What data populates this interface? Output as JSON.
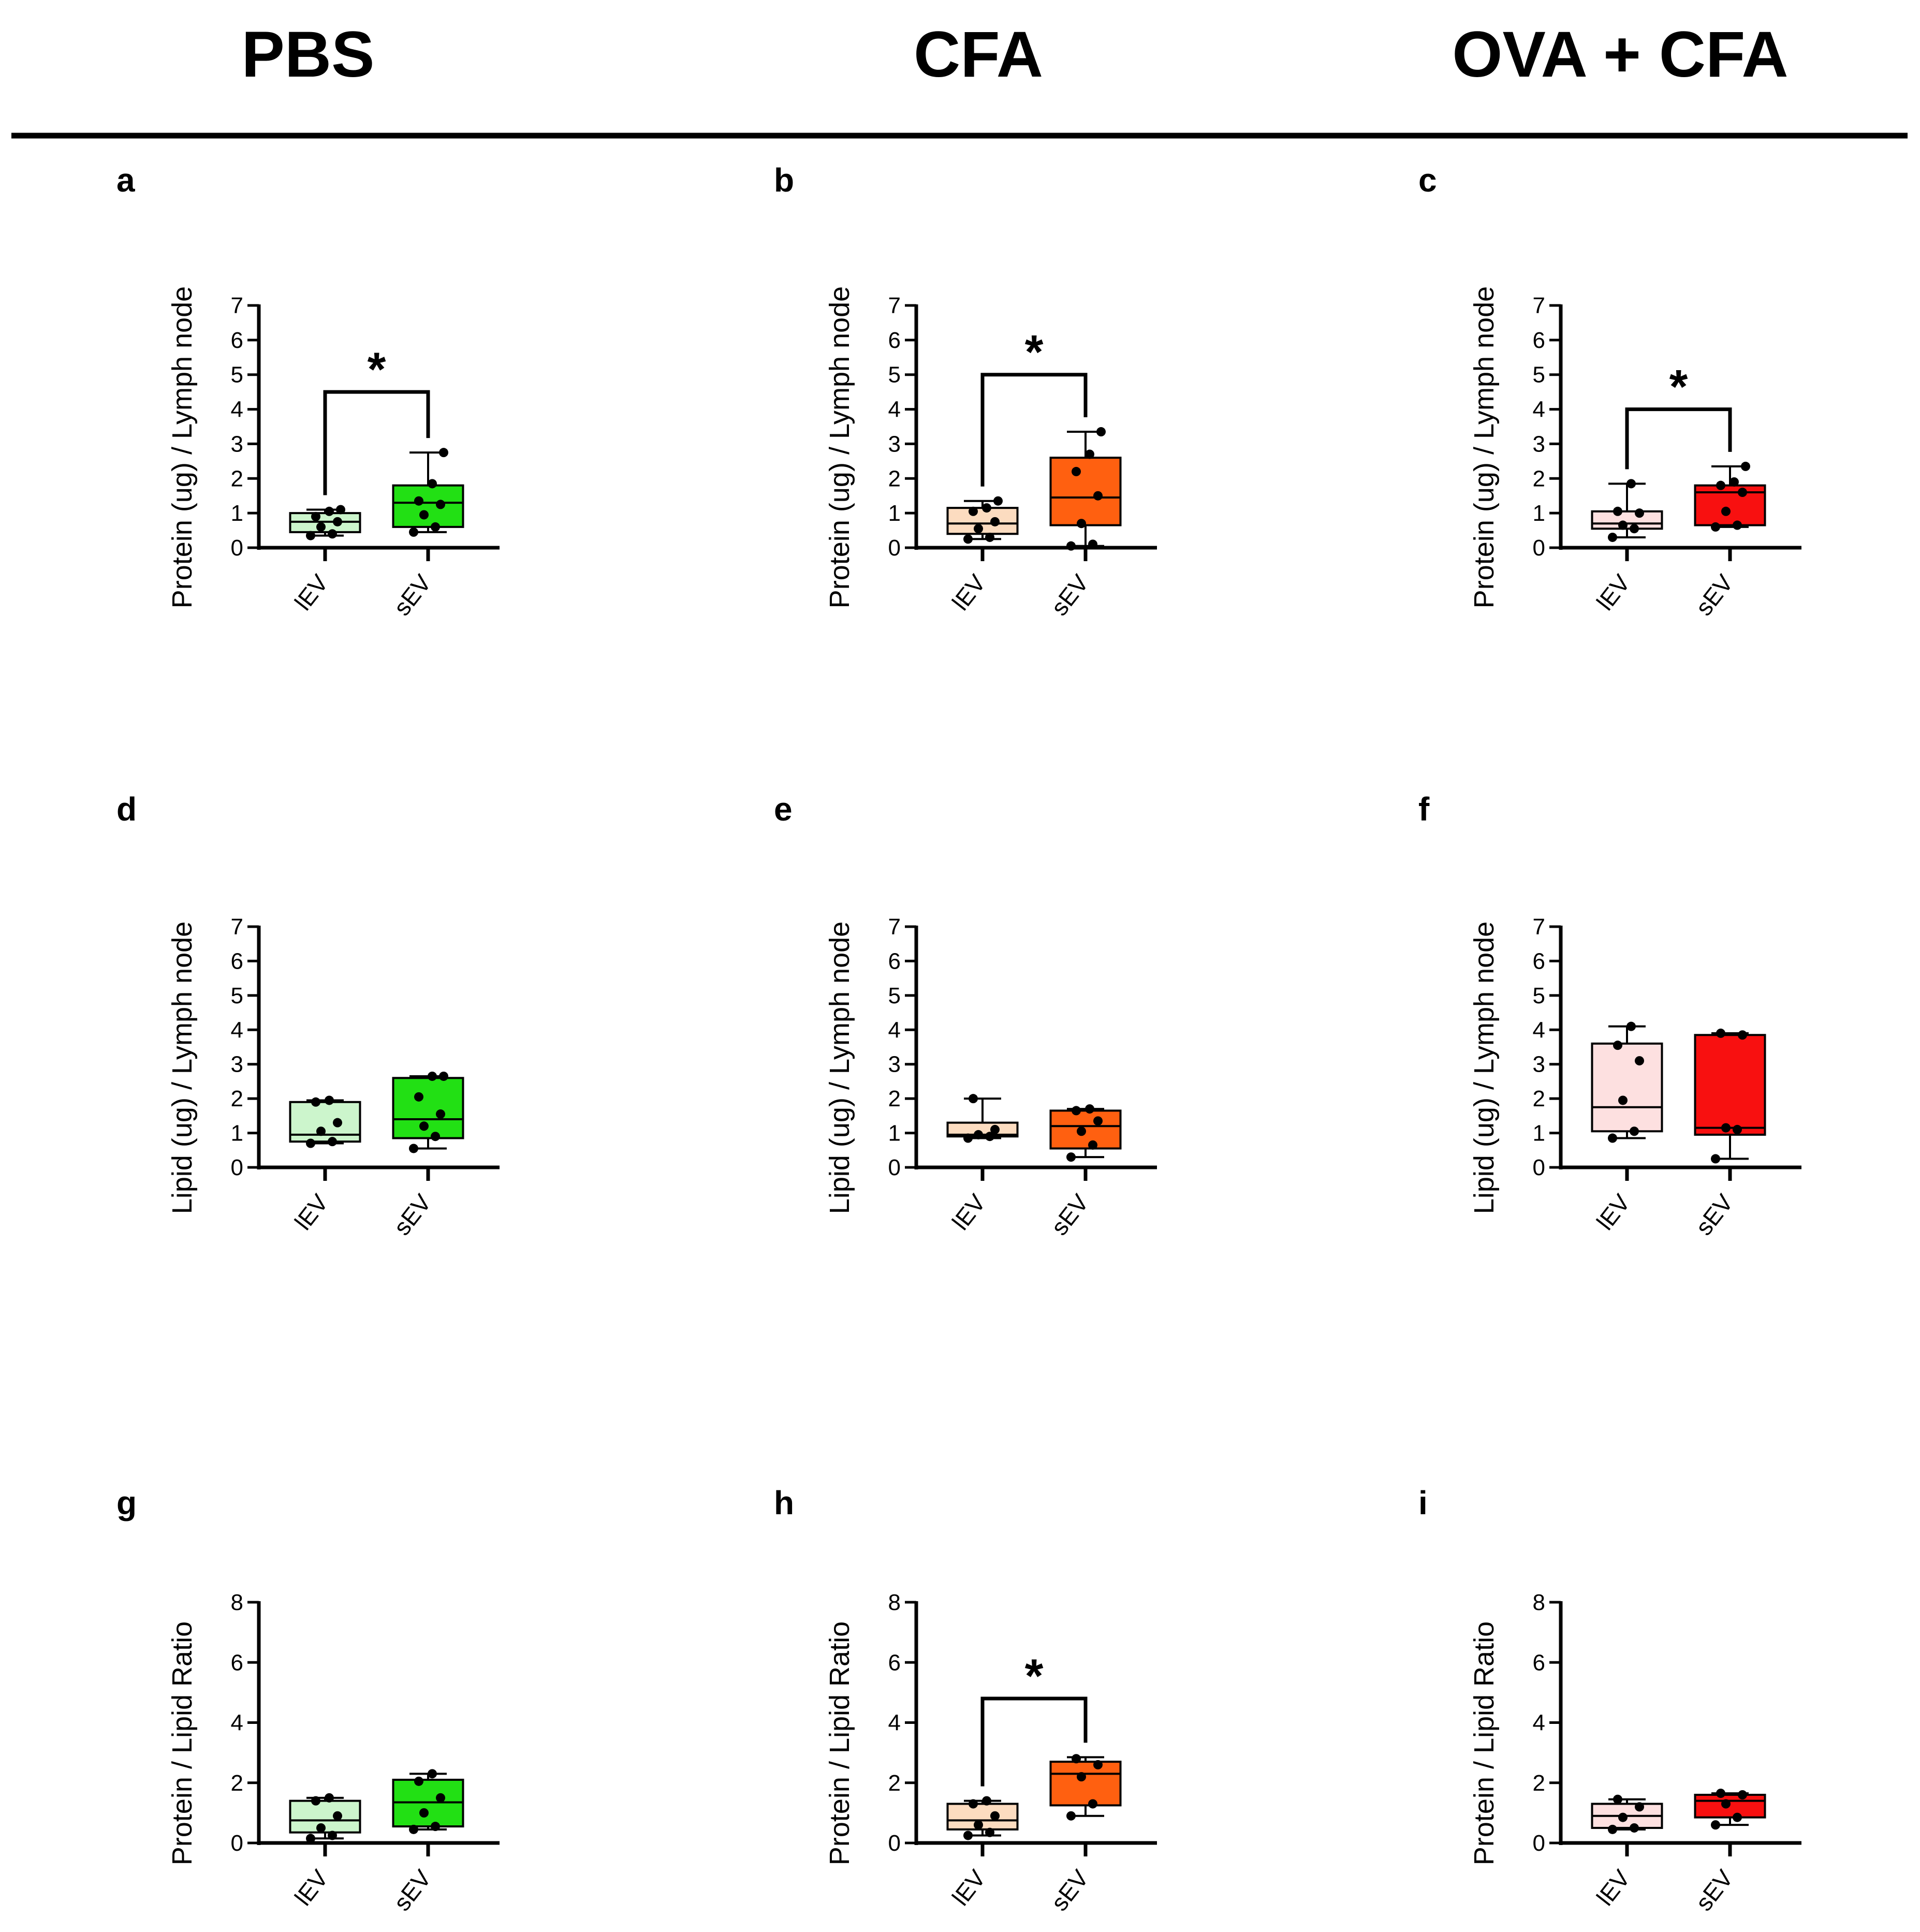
{
  "figure": {
    "group_titles": [
      "PBS",
      "CFA",
      "OVA + CFA"
    ],
    "colors": {
      "pbs_lEV": "#ccf5cc",
      "pbs_sEV": "#22e014",
      "cfa_lEV": "#fcdcc0",
      "cfa_sEV": "#ff6010",
      "ova_lEV": "#fde0e0",
      "ova_sEV": "#f81010"
    }
  },
  "chart_data": [
    {
      "type": "box",
      "panel": "a",
      "group": "PBS",
      "ylabel": "Protein (ug) / Lymph node",
      "ylim": [
        0,
        7
      ],
      "yticks": [
        "0",
        "1",
        "2",
        "3",
        "4",
        "5",
        "6",
        "7"
      ],
      "categories": [
        "lEV",
        "sEV"
      ],
      "boxes": [
        {
          "name": "lEV",
          "min": 0.35,
          "q1": 0.45,
          "median": 0.75,
          "q3": 1.0,
          "max": 1.1,
          "points": [
            0.35,
            0.4,
            0.6,
            0.75,
            0.9,
            1.05,
            1.1
          ],
          "color_key": "pbs_lEV"
        },
        {
          "name": "sEV",
          "min": 0.45,
          "q1": 0.6,
          "median": 1.3,
          "q3": 1.8,
          "max": 2.75,
          "points": [
            0.45,
            0.6,
            0.95,
            1.25,
            1.35,
            1.85,
            2.75
          ],
          "color_key": "pbs_sEV"
        }
      ],
      "significance": {
        "label": "*",
        "y": 4.5
      }
    },
    {
      "type": "box",
      "panel": "b",
      "group": "CFA",
      "ylabel": "Protein (ug) / Lymph node",
      "ylim": [
        0,
        7
      ],
      "yticks": [
        "0",
        "1",
        "2",
        "3",
        "4",
        "5",
        "6",
        "7"
      ],
      "categories": [
        "lEV",
        "sEV"
      ],
      "boxes": [
        {
          "name": "lEV",
          "min": 0.25,
          "q1": 0.4,
          "median": 0.7,
          "q3": 1.15,
          "max": 1.35,
          "points": [
            0.25,
            0.3,
            0.55,
            0.75,
            1.05,
            1.15,
            1.35
          ],
          "color_key": "cfa_lEV"
        },
        {
          "name": "sEV",
          "min": 0.05,
          "q1": 0.65,
          "median": 1.45,
          "q3": 2.6,
          "max": 3.35,
          "points": [
            0.05,
            0.1,
            0.7,
            1.5,
            2.2,
            2.7,
            3.35
          ],
          "color_key": "cfa_sEV"
        }
      ],
      "significance": {
        "label": "*",
        "y": 5.0
      }
    },
    {
      "type": "box",
      "panel": "c",
      "group": "OVA + CFA",
      "ylabel": "Protein (ug) / Lymph node",
      "ylim": [
        0,
        7
      ],
      "yticks": [
        "0",
        "1",
        "2",
        "3",
        "4",
        "5",
        "6",
        "7"
      ],
      "categories": [
        "lEV",
        "sEV"
      ],
      "boxes": [
        {
          "name": "lEV",
          "min": 0.3,
          "q1": 0.55,
          "median": 0.7,
          "q3": 1.05,
          "max": 1.85,
          "points": [
            0.3,
            0.55,
            0.65,
            1.0,
            1.05,
            1.85
          ],
          "color_key": "ova_lEV"
        },
        {
          "name": "sEV",
          "min": 0.6,
          "q1": 0.65,
          "median": 1.6,
          "q3": 1.8,
          "max": 2.35,
          "points": [
            0.6,
            0.65,
            1.05,
            1.6,
            1.8,
            1.9,
            2.35
          ],
          "color_key": "ova_sEV"
        }
      ],
      "significance": {
        "label": "*",
        "y": 4.0
      }
    },
    {
      "type": "box",
      "panel": "d",
      "group": "PBS",
      "ylabel": "Lipid (ug) / Lymph node",
      "ylim": [
        0,
        7
      ],
      "yticks": [
        "0",
        "1",
        "2",
        "3",
        "4",
        "5",
        "6",
        "7"
      ],
      "categories": [
        "lEV",
        "sEV"
      ],
      "boxes": [
        {
          "name": "lEV",
          "min": 0.7,
          "q1": 0.75,
          "median": 0.95,
          "q3": 1.9,
          "max": 1.95,
          "points": [
            0.7,
            0.75,
            1.05,
            1.3,
            1.9,
            1.95
          ],
          "color_key": "pbs_lEV"
        },
        {
          "name": "sEV",
          "min": 0.55,
          "q1": 0.85,
          "median": 1.4,
          "q3": 2.6,
          "max": 2.65,
          "points": [
            0.55,
            0.9,
            1.2,
            1.55,
            2.05,
            2.65,
            2.65
          ],
          "color_key": "pbs_sEV"
        }
      ],
      "significance": null
    },
    {
      "type": "box",
      "panel": "e",
      "group": "CFA",
      "ylabel": "Lipid (ug) / Lymph node",
      "ylim": [
        0,
        7
      ],
      "yticks": [
        "0",
        "1",
        "2",
        "3",
        "4",
        "5",
        "6",
        "7"
      ],
      "categories": [
        "lEV",
        "sEV"
      ],
      "boxes": [
        {
          "name": "lEV",
          "min": 0.85,
          "q1": 0.9,
          "median": 0.95,
          "q3": 1.3,
          "max": 2.0,
          "points": [
            0.85,
            0.9,
            0.95,
            1.1,
            2.0
          ],
          "color_key": "cfa_lEV"
        },
        {
          "name": "sEV",
          "min": 0.3,
          "q1": 0.55,
          "median": 1.2,
          "q3": 1.65,
          "max": 1.7,
          "points": [
            0.3,
            0.65,
            1.05,
            1.35,
            1.65,
            1.7
          ],
          "color_key": "cfa_sEV"
        }
      ],
      "significance": null
    },
    {
      "type": "box",
      "panel": "f",
      "group": "OVA + CFA",
      "ylabel": "Lipid (ug) / Lymph node",
      "ylim": [
        0,
        7
      ],
      "yticks": [
        "0",
        "1",
        "2",
        "3",
        "4",
        "5",
        "6",
        "7"
      ],
      "categories": [
        "lEV",
        "sEV"
      ],
      "boxes": [
        {
          "name": "lEV",
          "min": 0.85,
          "q1": 1.05,
          "median": 1.75,
          "q3": 3.6,
          "max": 4.1,
          "points": [
            0.85,
            1.05,
            1.95,
            3.1,
            3.55,
            4.1
          ],
          "color_key": "ova_lEV"
        },
        {
          "name": "sEV",
          "min": 0.25,
          "q1": 0.95,
          "median": 1.15,
          "q3": 3.85,
          "max": 3.9,
          "points": [
            0.25,
            1.1,
            1.15,
            3.85,
            3.9
          ],
          "color_key": "ova_sEV"
        }
      ],
      "significance": null
    },
    {
      "type": "box",
      "panel": "g",
      "group": "PBS",
      "ylabel": "Protein / Lipid Ratio",
      "ylim": [
        0,
        8
      ],
      "yticks": [
        "0",
        "2",
        "4",
        "6",
        "8"
      ],
      "categories": [
        "lEV",
        "sEV"
      ],
      "boxes": [
        {
          "name": "lEV",
          "min": 0.15,
          "q1": 0.35,
          "median": 0.75,
          "q3": 1.4,
          "max": 1.5,
          "points": [
            0.15,
            0.25,
            0.5,
            0.9,
            1.4,
            1.5
          ],
          "color_key": "pbs_lEV"
        },
        {
          "name": "sEV",
          "min": 0.45,
          "q1": 0.55,
          "median": 1.35,
          "q3": 2.1,
          "max": 2.3,
          "points": [
            0.45,
            0.55,
            1.0,
            1.5,
            2.05,
            2.3
          ],
          "color_key": "pbs_sEV"
        }
      ],
      "significance": null
    },
    {
      "type": "box",
      "panel": "h",
      "group": "CFA",
      "ylabel": "Protein / Lipid Ratio",
      "ylim": [
        0,
        8
      ],
      "yticks": [
        "0",
        "2",
        "4",
        "6",
        "8"
      ],
      "categories": [
        "lEV",
        "sEV"
      ],
      "boxes": [
        {
          "name": "lEV",
          "min": 0.25,
          "q1": 0.45,
          "median": 0.75,
          "q3": 1.3,
          "max": 1.4,
          "points": [
            0.25,
            0.35,
            0.6,
            0.9,
            1.3,
            1.4
          ],
          "color_key": "cfa_lEV"
        },
        {
          "name": "sEV",
          "min": 0.9,
          "q1": 1.25,
          "median": 2.3,
          "q3": 2.7,
          "max": 2.85,
          "points": [
            0.9,
            1.3,
            2.2,
            2.6,
            2.8
          ],
          "color_key": "cfa_sEV"
        }
      ],
      "significance": {
        "label": "*",
        "y": 4.8
      }
    },
    {
      "type": "box",
      "panel": "i",
      "group": "OVA + CFA",
      "ylabel": "Protein / Lipid Ratio",
      "ylim": [
        0,
        8
      ],
      "yticks": [
        "0",
        "2",
        "4",
        "6",
        "8"
      ],
      "categories": [
        "lEV",
        "sEV"
      ],
      "boxes": [
        {
          "name": "lEV",
          "min": 0.45,
          "q1": 0.5,
          "median": 0.9,
          "q3": 1.3,
          "max": 1.45,
          "points": [
            0.45,
            0.5,
            0.85,
            1.2,
            1.45
          ],
          "color_key": "ova_lEV"
        },
        {
          "name": "sEV",
          "min": 0.6,
          "q1": 0.85,
          "median": 1.4,
          "q3": 1.6,
          "max": 1.65,
          "points": [
            0.6,
            0.85,
            1.3,
            1.6,
            1.65
          ],
          "color_key": "ova_sEV"
        }
      ],
      "significance": null
    }
  ]
}
